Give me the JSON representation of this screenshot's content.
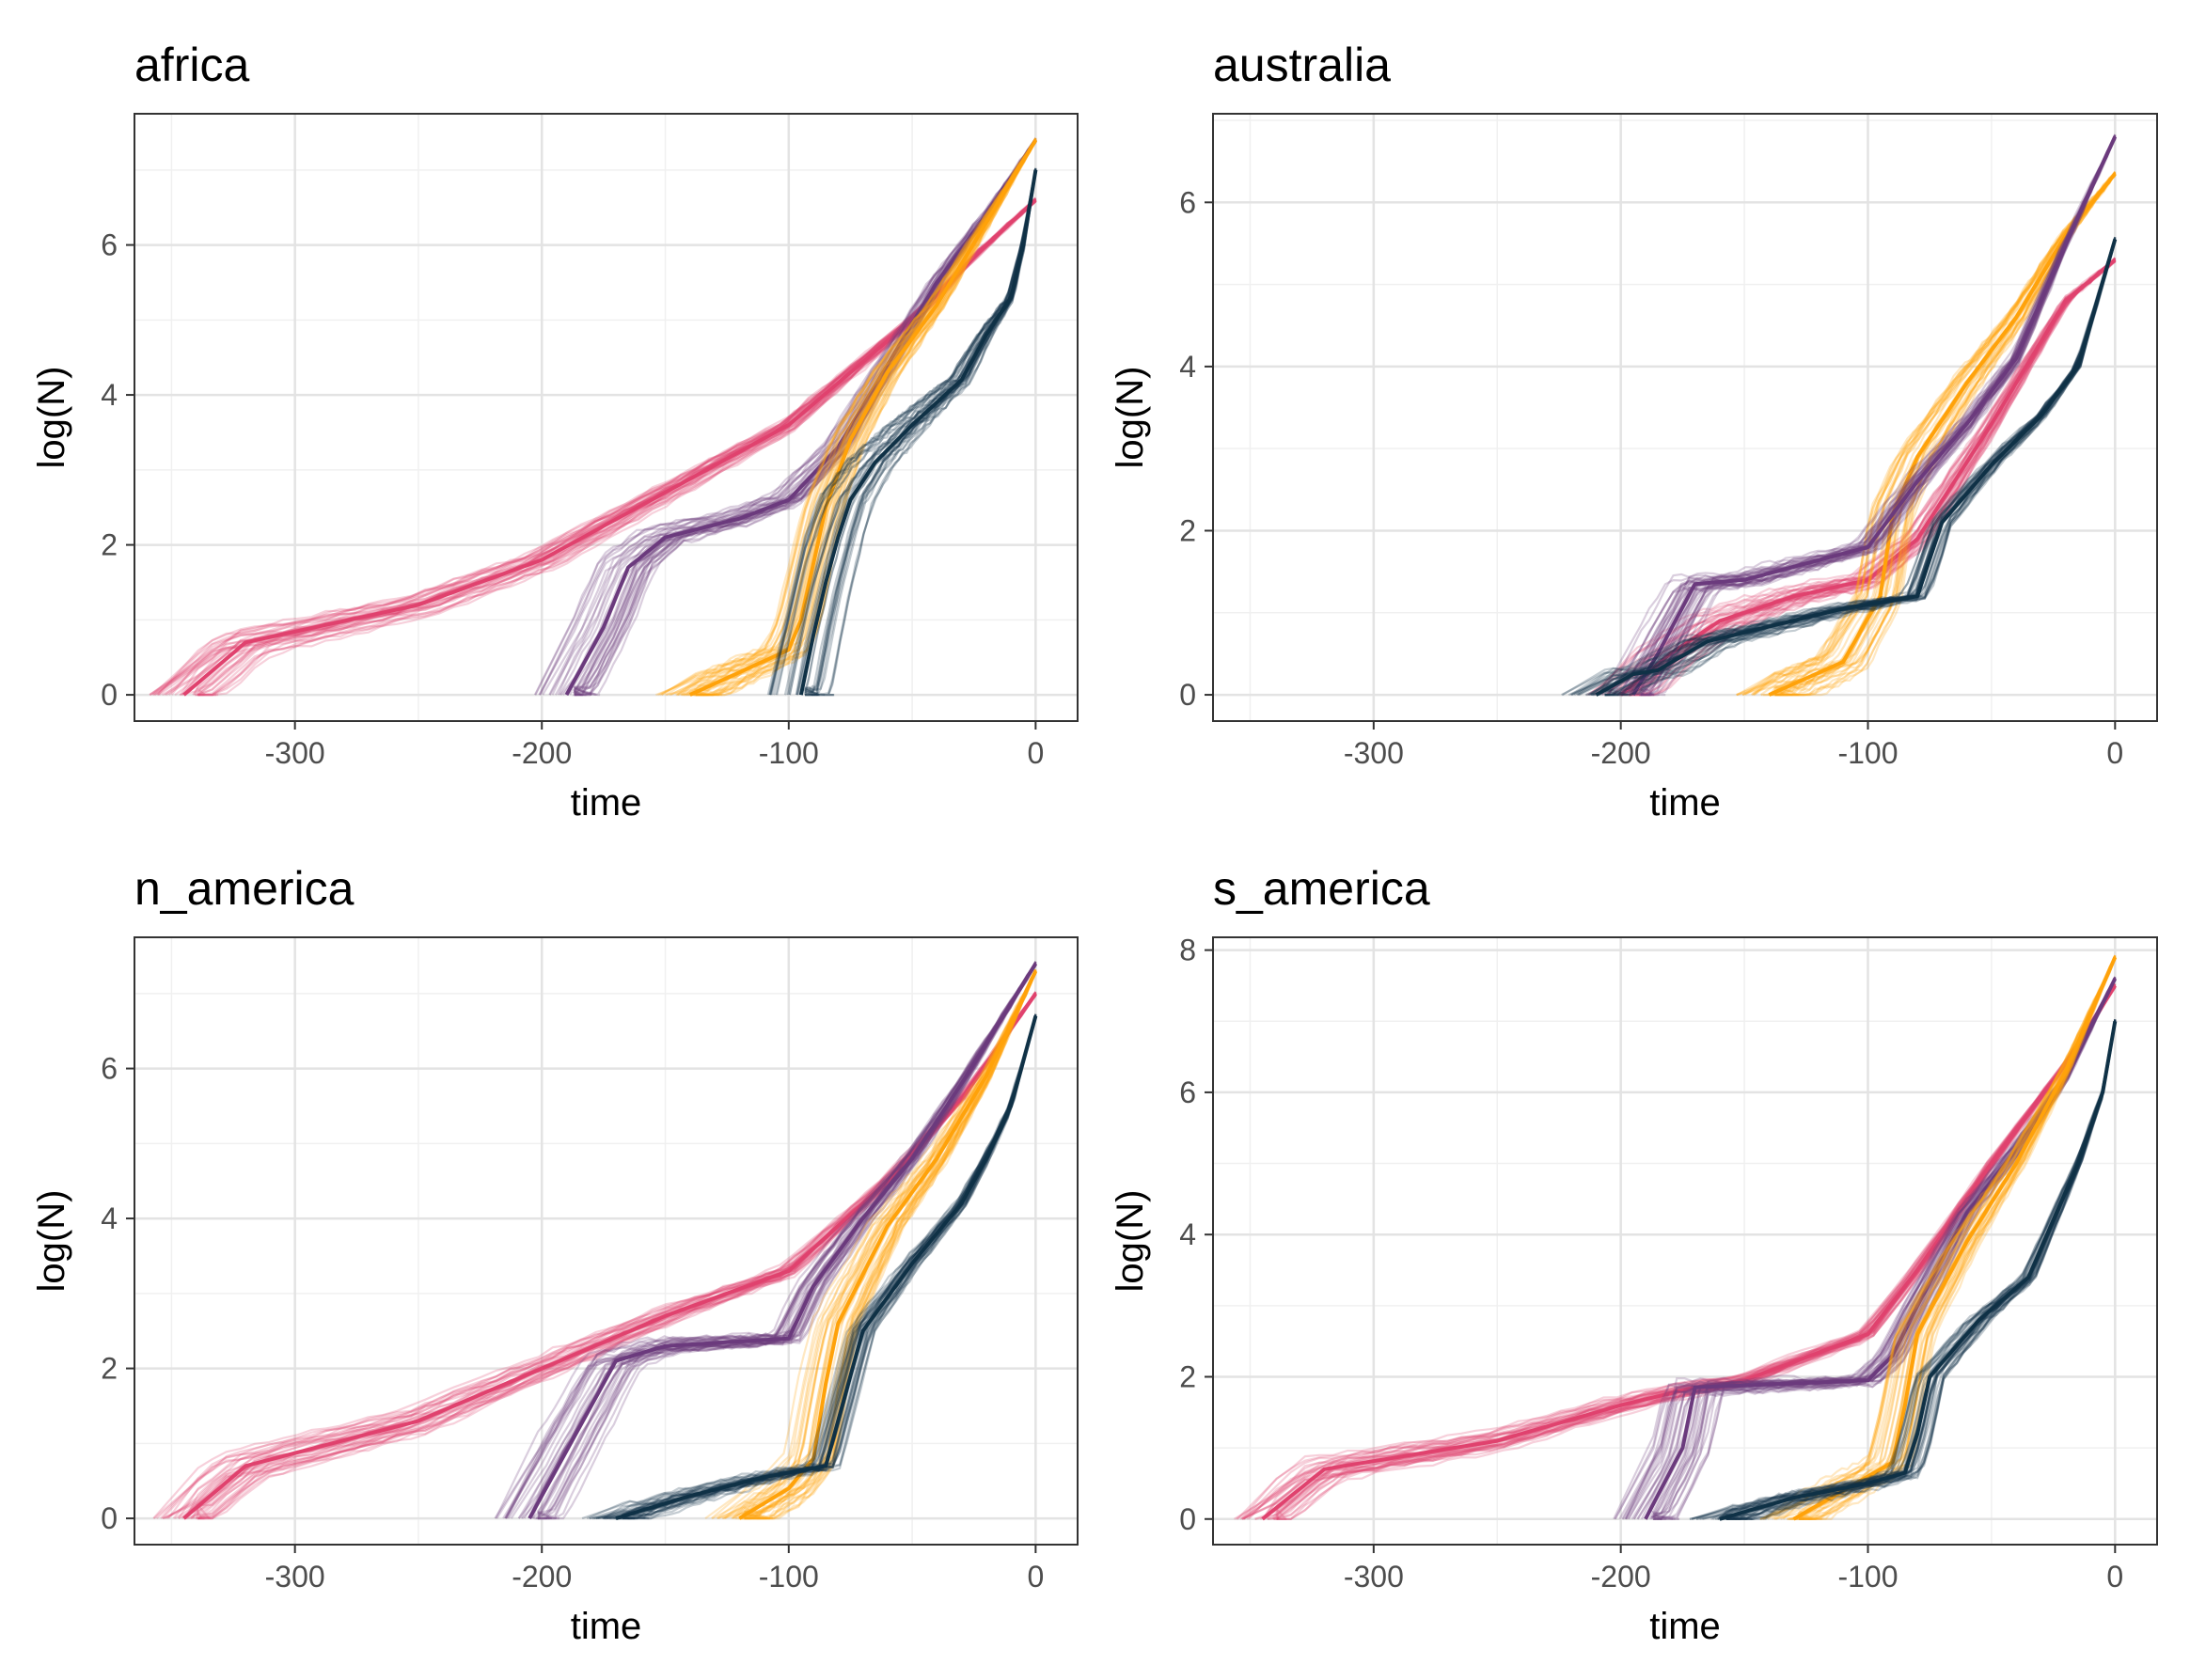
{
  "chart_data": [
    {
      "type": "line",
      "title": "africa",
      "xlabel": "time",
      "ylabel": "log(N)",
      "xlim": [
        -365,
        17
      ],
      "ylim": [
        -0.35,
        7.75
      ],
      "xticks": [
        -300,
        -200,
        -100,
        0
      ],
      "yticks": [
        0,
        2,
        4,
        6
      ],
      "grid": true,
      "series": [
        {
          "color": "#E0426E",
          "bundle_width": 0.18,
          "x": [
            -345,
            -320,
            -250,
            -200,
            -150,
            -100,
            -50,
            -20,
            0
          ],
          "y": [
            0,
            0.7,
            1.2,
            1.8,
            2.7,
            3.6,
            5.0,
            6.0,
            6.6
          ]
        },
        {
          "color": "#6B3A7D",
          "bundle_width": 0.12,
          "x": [
            -190,
            -175,
            -165,
            -150,
            -120,
            -100,
            -80,
            -60,
            -40,
            -20,
            0
          ],
          "y": [
            0,
            0.9,
            1.7,
            2.1,
            2.35,
            2.6,
            3.3,
            4.4,
            5.5,
            6.4,
            7.4
          ]
        },
        {
          "color": "#FFA20A",
          "bundle_width": 0.12,
          "x": [
            -140,
            -120,
            -100,
            -95,
            -85,
            -75,
            -60,
            -40,
            -20,
            0
          ],
          "y": [
            0,
            0.3,
            0.6,
            1.0,
            2.5,
            3.4,
            4.3,
            5.2,
            6.3,
            7.4
          ]
        },
        {
          "color": "#0F3146",
          "bundle_width": 0.1,
          "x": [
            -95,
            -90,
            -85,
            -80,
            -75,
            -65,
            -50,
            -30,
            -20,
            -10,
            -5,
            0
          ],
          "y": [
            0,
            0.8,
            1.5,
            2.1,
            2.6,
            3.1,
            3.6,
            4.2,
            4.8,
            5.3,
            6.0,
            7.0
          ]
        }
      ]
    },
    {
      "type": "line",
      "title": "australia",
      "xlabel": "time",
      "ylabel": "log(N)",
      "xlim": [
        -365,
        17
      ],
      "ylim": [
        -0.32,
        7.08
      ],
      "xticks": [
        -300,
        -200,
        -100,
        0
      ],
      "yticks": [
        0,
        2,
        4,
        6
      ],
      "grid": true,
      "series": [
        {
          "color": "#E0426E",
          "bundle_width": 0.15,
          "x": [
            -200,
            -180,
            -160,
            -130,
            -100,
            -80,
            -50,
            -20,
            0
          ],
          "y": [
            0,
            0.5,
            0.9,
            1.2,
            1.4,
            1.9,
            3.3,
            4.8,
            5.3
          ]
        },
        {
          "color": "#FFA20A",
          "bundle_width": 0.15,
          "x": [
            -140,
            -110,
            -95,
            -90,
            -80,
            -60,
            -40,
            -20,
            0
          ],
          "y": [
            0,
            0.4,
            1.2,
            2.2,
            2.9,
            3.8,
            4.6,
            5.6,
            6.35
          ]
        },
        {
          "color": "#6B3A7D",
          "bundle_width": 0.1,
          "x": [
            -195,
            -185,
            -170,
            -150,
            -100,
            -80,
            -60,
            -40,
            -20,
            0
          ],
          "y": [
            0,
            0.5,
            1.35,
            1.4,
            1.8,
            2.6,
            3.3,
            4.1,
            5.5,
            6.8
          ]
        },
        {
          "color": "#0F3146",
          "bundle_width": 0.08,
          "x": [
            -210,
            -195,
            -185,
            -165,
            -110,
            -80,
            -70,
            -50,
            -30,
            -15,
            0
          ],
          "y": [
            0,
            0.25,
            0.3,
            0.65,
            1.05,
            1.2,
            2.1,
            2.8,
            3.4,
            4.0,
            5.55
          ]
        }
      ]
    },
    {
      "type": "line",
      "title": "n_america",
      "xlabel": "time",
      "ylabel": "log(N)",
      "xlim": [
        -365,
        17
      ],
      "ylim": [
        -0.35,
        7.75
      ],
      "xticks": [
        -300,
        -200,
        -100,
        0
      ],
      "yticks": [
        0,
        2,
        4,
        6
      ],
      "grid": true,
      "series": [
        {
          "color": "#E0426E",
          "bundle_width": 0.18,
          "x": [
            -345,
            -320,
            -250,
            -200,
            -150,
            -100,
            -60,
            -30,
            0
          ],
          "y": [
            0,
            0.7,
            1.3,
            2.0,
            2.7,
            3.3,
            4.5,
            5.6,
            7.0
          ]
        },
        {
          "color": "#6B3A7D",
          "bundle_width": 0.12,
          "x": [
            -205,
            -190,
            -170,
            -150,
            -100,
            -90,
            -70,
            -50,
            -30,
            0
          ],
          "y": [
            0,
            0.9,
            2.1,
            2.3,
            2.4,
            3.1,
            4.0,
            4.8,
            5.8,
            7.4
          ]
        },
        {
          "color": "#FFA20A",
          "bundle_width": 0.12,
          "x": [
            -120,
            -100,
            -90,
            -85,
            -80,
            -60,
            -40,
            -20,
            0
          ],
          "y": [
            0,
            0.4,
            0.8,
            1.8,
            2.6,
            3.9,
            4.8,
            5.9,
            7.3
          ]
        },
        {
          "color": "#0F3146",
          "bundle_width": 0.08,
          "x": [
            -170,
            -140,
            -110,
            -85,
            -80,
            -70,
            -50,
            -30,
            -20,
            -10,
            0
          ],
          "y": [
            0,
            0.3,
            0.55,
            0.7,
            1.3,
            2.5,
            3.4,
            4.2,
            4.8,
            5.5,
            6.7
          ]
        }
      ]
    },
    {
      "type": "line",
      "title": "s_america",
      "xlabel": "time",
      "ylabel": "log(N)",
      "xlim": [
        -365,
        17
      ],
      "ylim": [
        -0.36,
        8.18
      ],
      "xticks": [
        -300,
        -200,
        -100,
        0
      ],
      "yticks": [
        0,
        2,
        4,
        6,
        8
      ],
      "grid": true,
      "series": [
        {
          "color": "#E0426E",
          "bundle_width": 0.18,
          "x": [
            -345,
            -320,
            -250,
            -200,
            -170,
            -150,
            -100,
            -80,
            -50,
            -20,
            0
          ],
          "y": [
            0,
            0.7,
            1.1,
            1.6,
            1.85,
            1.95,
            2.6,
            3.5,
            5.0,
            6.4,
            7.5
          ]
        },
        {
          "color": "#6B3A7D",
          "bundle_width": 0.12,
          "x": [
            -190,
            -175,
            -170,
            -100,
            -90,
            -80,
            -60,
            -40,
            -20,
            0
          ],
          "y": [
            0,
            1.0,
            1.85,
            1.95,
            2.3,
            3.0,
            4.3,
            5.2,
            6.2,
            7.6
          ]
        },
        {
          "color": "#FFA20A",
          "bundle_width": 0.12,
          "x": [
            -130,
            -110,
            -90,
            -85,
            -80,
            -60,
            -40,
            -20,
            0
          ],
          "y": [
            0,
            0.4,
            0.8,
            1.6,
            2.6,
            3.9,
            5.0,
            6.3,
            7.9
          ]
        },
        {
          "color": "#0F3146",
          "bundle_width": 0.08,
          "x": [
            -160,
            -130,
            -100,
            -85,
            -80,
            -75,
            -55,
            -35,
            -25,
            -15,
            -5,
            0
          ],
          "y": [
            0,
            0.3,
            0.5,
            0.65,
            1.2,
            2.0,
            2.8,
            3.4,
            4.2,
            5.0,
            6.0,
            7.0
          ]
        }
      ]
    }
  ]
}
